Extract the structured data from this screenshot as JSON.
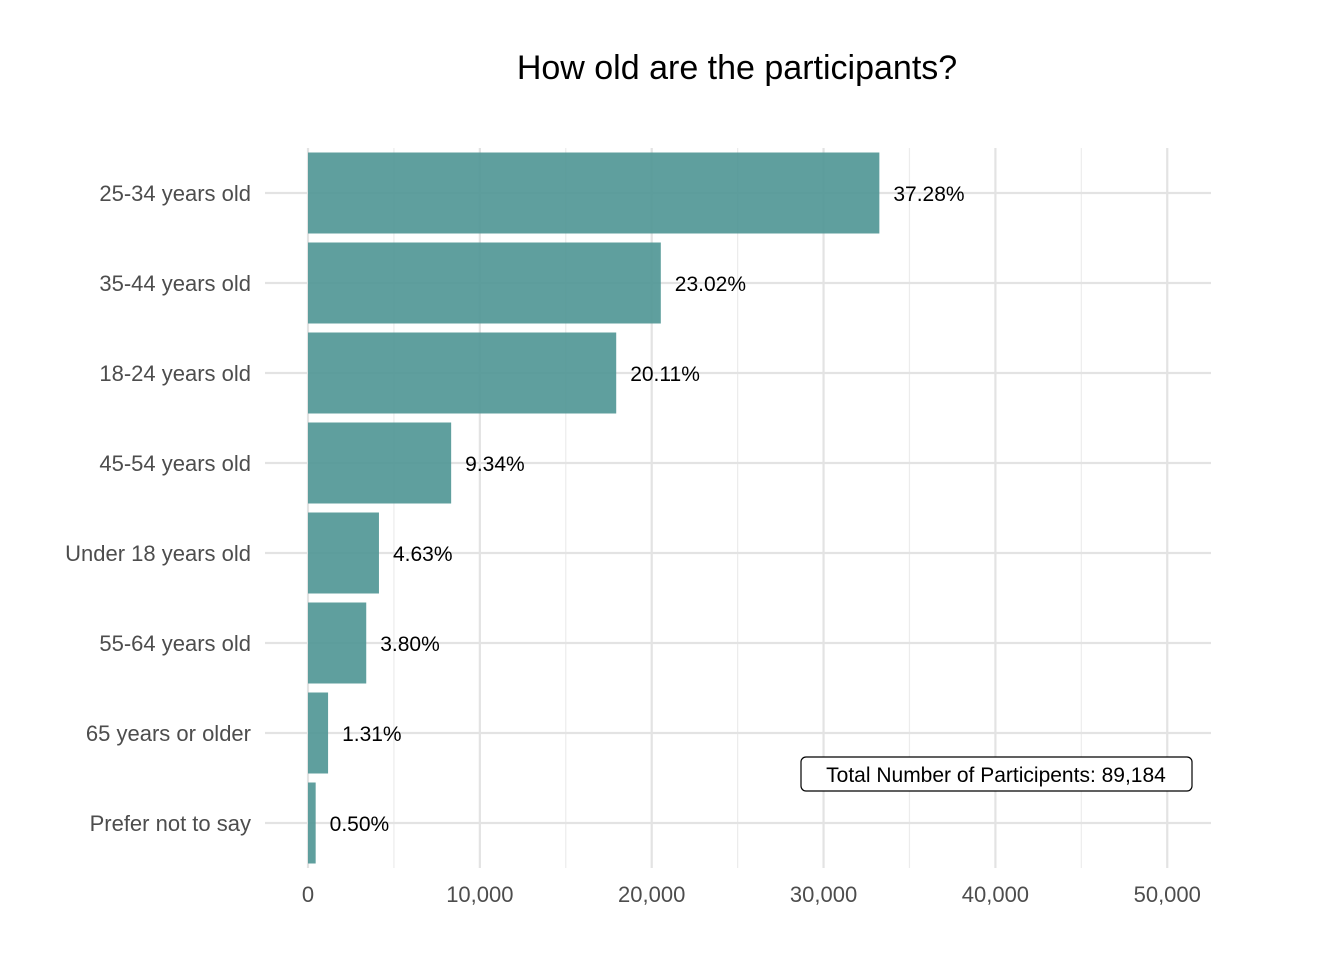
{
  "chart_data": {
    "type": "bar",
    "orientation": "horizontal",
    "title": "How old are the participants?",
    "xlabel": "",
    "ylabel": "",
    "categories": [
      "25-34 years old",
      "35-44 years old",
      "18-24 years old",
      "45-54 years old",
      "Under 18 years old",
      "55-64 years old",
      "65 years or older",
      "Prefer not to say"
    ],
    "values": [
      33248,
      20530,
      17935,
      8330,
      4129,
      3389,
      1168,
      446
    ],
    "value_labels": [
      "37.28%",
      "23.02%",
      "20.11%",
      "9.34%",
      "4.63%",
      "3.80%",
      "1.31%",
      "0.50%"
    ],
    "xlim": [
      0,
      52500
    ],
    "x_ticks": [
      0,
      10000,
      20000,
      30000,
      40000,
      50000
    ],
    "x_tick_labels": [
      "0",
      "10,000",
      "20,000",
      "30,000",
      "40,000",
      "50,000"
    ],
    "grid": true,
    "bar_color": "#4e9593",
    "annotation": "Total Number of Participents: 89,184"
  }
}
